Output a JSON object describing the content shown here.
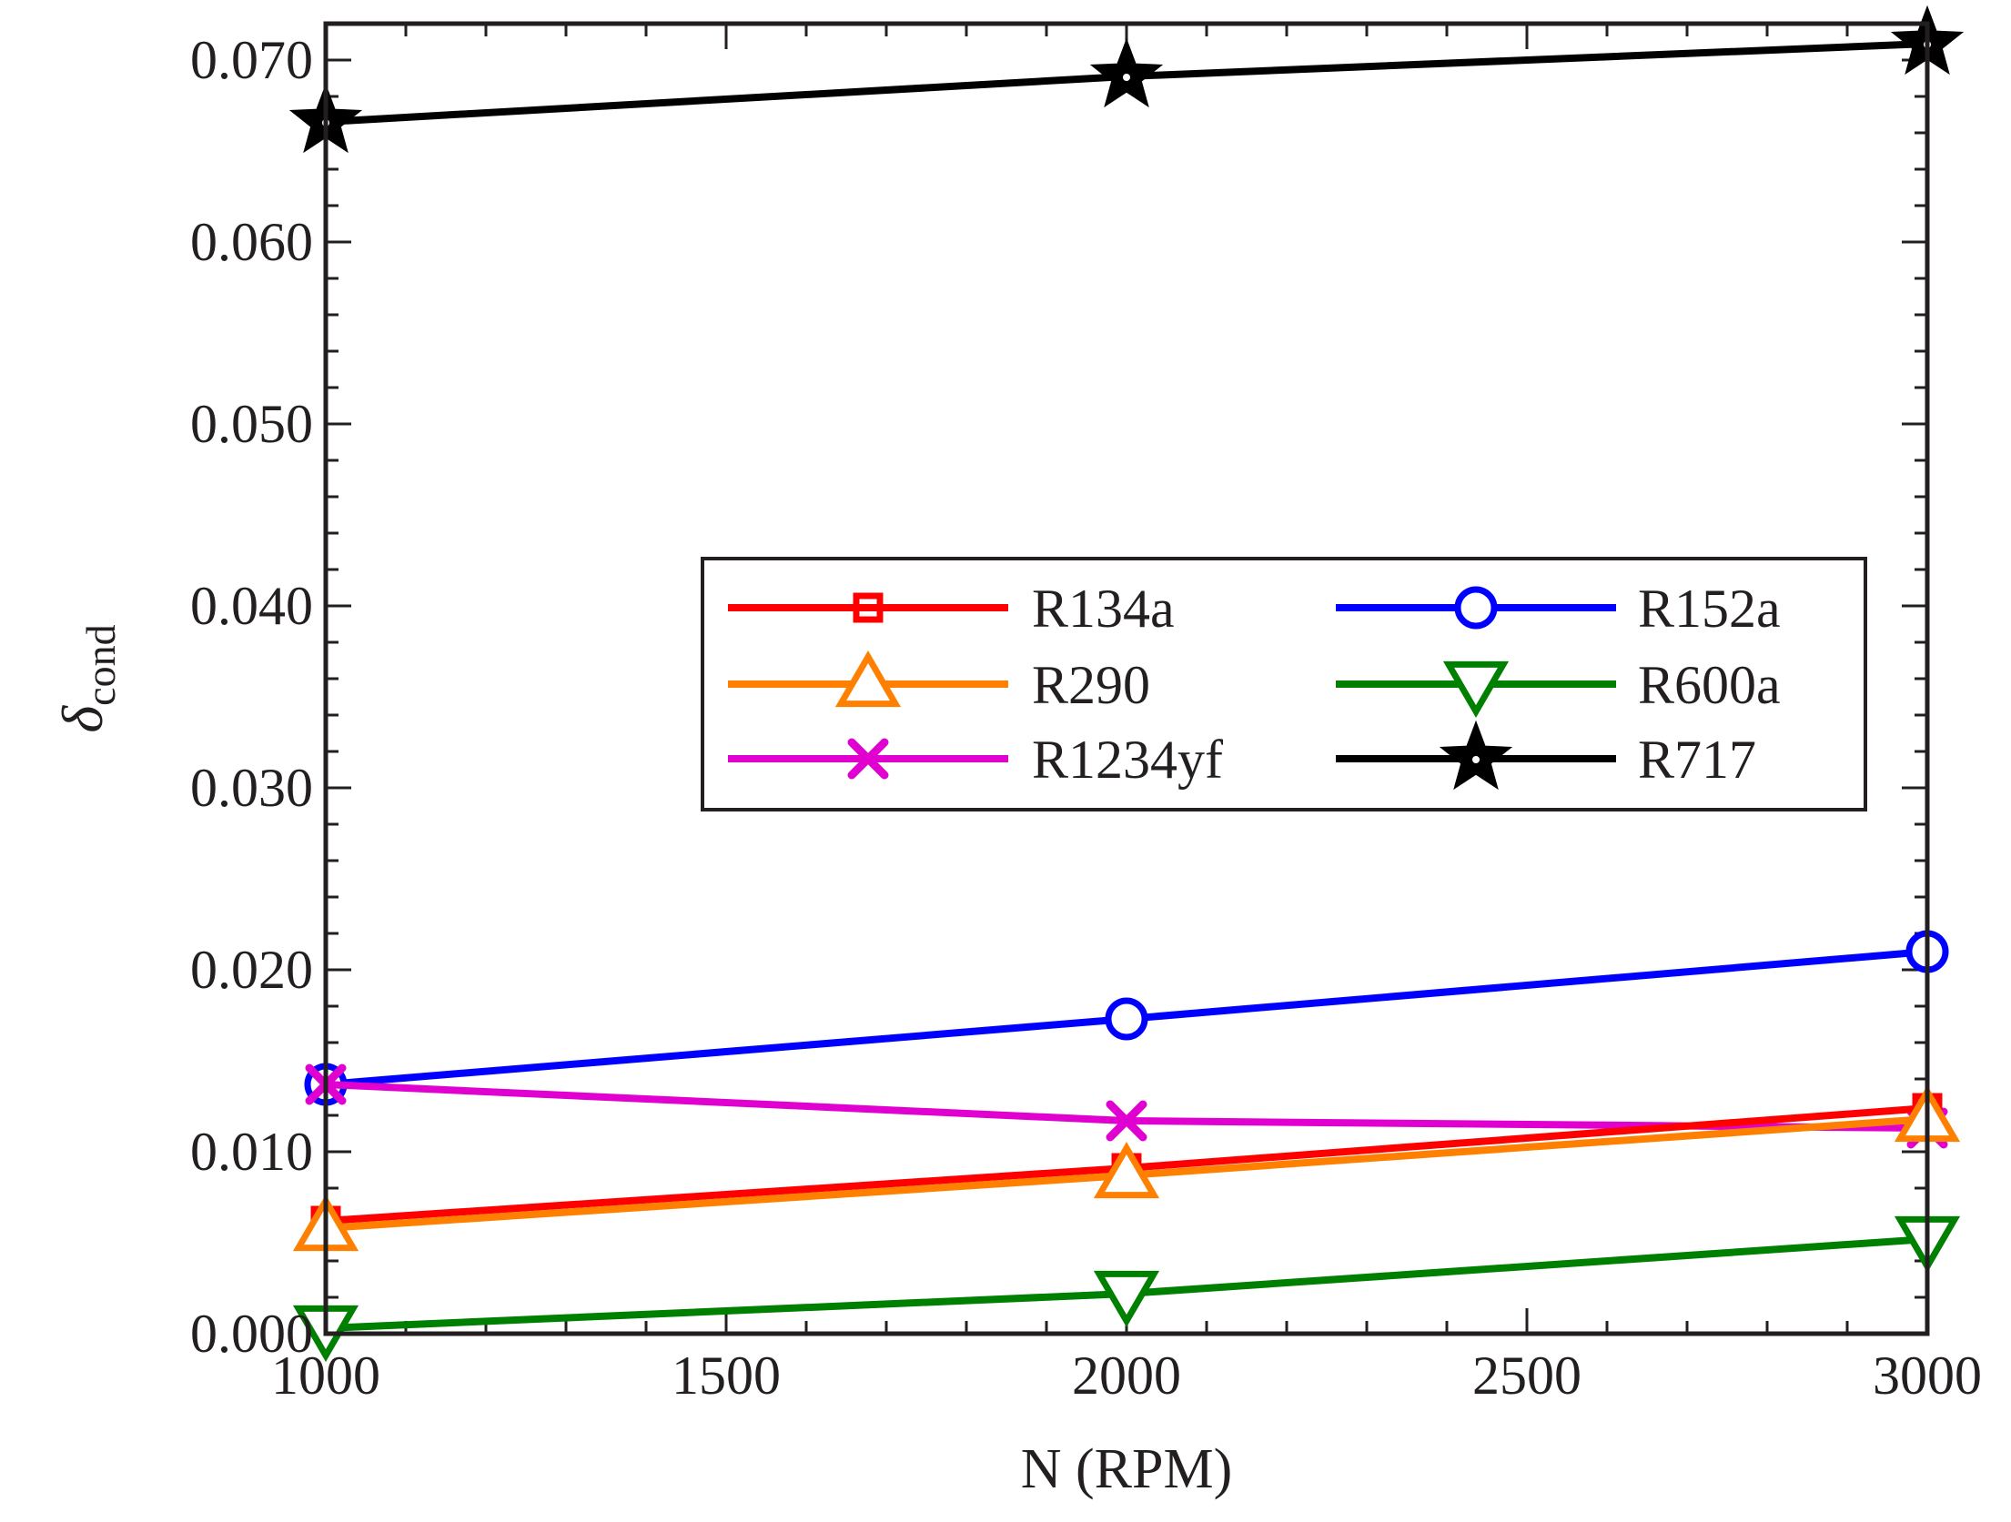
{
  "chart_data": {
    "type": "line",
    "xlabel": "N (RPM)",
    "ylabel": "δ",
    "ylabel_subscript": "cond",
    "xlim": [
      1000,
      3000
    ],
    "ylim": [
      0.0,
      0.072
    ],
    "x_ticks": [
      1000,
      1500,
      2000,
      2500,
      3000
    ],
    "x_tick_labels": [
      "1000",
      "1500",
      "2000",
      "2500",
      "3000"
    ],
    "y_ticks": [
      0.0,
      0.01,
      0.02,
      0.03,
      0.04,
      0.05,
      0.06,
      0.07
    ],
    "y_tick_labels": [
      "0.000",
      "0.010",
      "0.020",
      "0.030",
      "0.040",
      "0.050",
      "0.060",
      "0.070"
    ],
    "x": [
      1000,
      2000,
      3000
    ],
    "grid": false,
    "legend_position": "center-right",
    "legend_columns": 2,
    "series": [
      {
        "name": "R134a",
        "color": "#ff0000",
        "marker": "square",
        "values": [
          0.0062,
          0.0091,
          0.0124
        ]
      },
      {
        "name": "R152a",
        "color": "#0000ff",
        "marker": "circle",
        "values": [
          0.0137,
          0.0173,
          0.021
        ]
      },
      {
        "name": "R290",
        "color": "#ff8000",
        "marker": "triangle-up",
        "values": [
          0.0058,
          0.0087,
          0.0118
        ]
      },
      {
        "name": "R600a",
        "color": "#008000",
        "marker": "triangle-down",
        "values": [
          0.0003,
          0.0022,
          0.0052
        ]
      },
      {
        "name": "R1234yf",
        "color": "#e000d0",
        "marker": "x",
        "values": [
          0.0137,
          0.0117,
          0.0113
        ]
      },
      {
        "name": "R717",
        "color": "#000000",
        "marker": "star",
        "values": [
          0.0666,
          0.0691,
          0.0709
        ]
      }
    ]
  }
}
